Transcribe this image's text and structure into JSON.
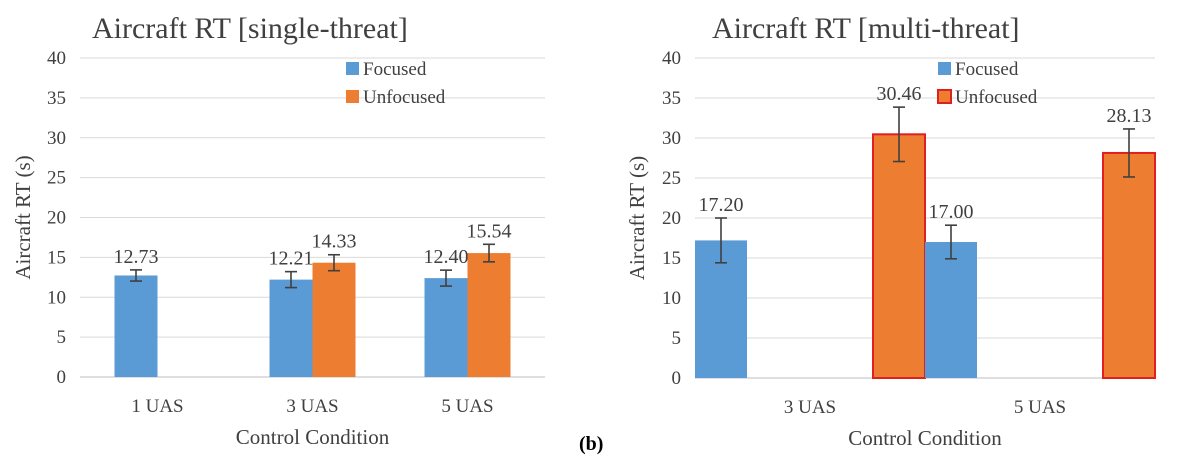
{
  "figure": {
    "panel_label": "(b)"
  },
  "colors": {
    "focused": "#5b9bd5",
    "unfocused": "#ed7d31",
    "unfocused_outline_right": "#e02020",
    "grid": "#d9d9d9",
    "errorbar": "#404040"
  },
  "chart_data": [
    {
      "type": "bar",
      "title": "Aircraft RT [single-threat]",
      "xlabel": "Control Condition",
      "ylabel": "Aircraft RT (s)",
      "ylim": [
        0,
        40
      ],
      "yticks": [
        0,
        5,
        10,
        15,
        20,
        25,
        30,
        35,
        40
      ],
      "categories": [
        "1 UAS",
        "3 UAS",
        "5 UAS"
      ],
      "series": [
        {
          "name": "Focused",
          "values": [
            12.73,
            12.21,
            12.4
          ],
          "labels": [
            "12.73",
            "12.21",
            "12.40"
          ],
          "error": [
            0.7,
            1.0,
            1.0
          ]
        },
        {
          "name": "Unfocused",
          "values": [
            null,
            14.33,
            15.54
          ],
          "labels": [
            "",
            "14.33",
            "15.54"
          ],
          "error": [
            null,
            1.0,
            1.1
          ]
        }
      ],
      "legend": "top-right",
      "grid": true
    },
    {
      "type": "bar",
      "title": "Aircraft RT [multi-threat]",
      "xlabel": "Control Condition",
      "ylabel": "Aircraft RT (s)",
      "ylim": [
        0,
        40
      ],
      "yticks": [
        0,
        5,
        10,
        15,
        20,
        25,
        30,
        35,
        40
      ],
      "categories": [
        "3 UAS",
        "5 UAS"
      ],
      "series": [
        {
          "name": "Focused",
          "values": [
            17.2,
            17.0
          ],
          "labels": [
            "17.20",
            "17.00"
          ],
          "error": [
            2.8,
            2.1
          ]
        },
        {
          "name": "Unfocused",
          "values": [
            30.46,
            28.13
          ],
          "labels": [
            "30.46",
            "28.13"
          ],
          "error": [
            3.4,
            3.0
          ]
        }
      ],
      "legend": "top-right",
      "grid": true
    }
  ]
}
